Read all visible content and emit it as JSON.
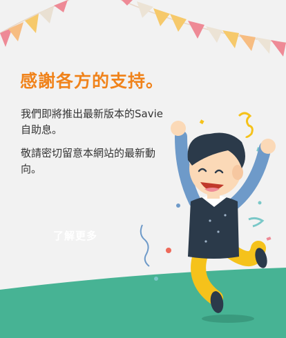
{
  "headline": "感謝各方的支持。",
  "body": {
    "p1": "我們即將推出最新版本的Savie自助息。",
    "p2": "敬請密切留意本網站的最新動向。"
  },
  "cta_label": "了解更多",
  "colors": {
    "background": "#f2f2f2",
    "headline": "#f0831b",
    "ground": "#47b394",
    "shirt": "#2b3a4a",
    "pants": "#f5c21b",
    "arms": "#6e9ac9",
    "skin": "#fbd9b7",
    "hair": "#2b3a4a"
  },
  "illustration": {
    "subject": "celebrating-man",
    "decor": [
      "bunting-flags",
      "confetti"
    ]
  }
}
